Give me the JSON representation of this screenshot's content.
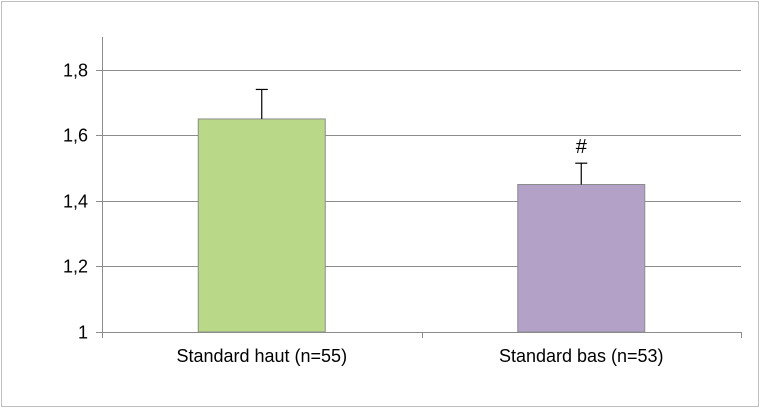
{
  "chart_data": {
    "type": "bar",
    "title": "",
    "xlabel": "",
    "ylabel": "",
    "ylim": [
      1,
      1.9
    ],
    "yticks": [
      "1",
      "1,2",
      "1,4",
      "1,6",
      "1,8"
    ],
    "ytick_values": [
      1,
      1.2,
      1.4,
      1.6,
      1.8
    ],
    "categories": [
      "Standard haut (n=55)",
      "Standard bas (n=53)"
    ],
    "values": [
      1.65,
      1.45
    ],
    "error_upper": [
      0.09,
      0.065
    ],
    "annotations": [
      "",
      "#"
    ],
    "bar_colors": [
      "#b9d989",
      "#b3a1c8"
    ],
    "bar_edge_color": "#8c8c8c",
    "grid": true,
    "legend": "none"
  }
}
